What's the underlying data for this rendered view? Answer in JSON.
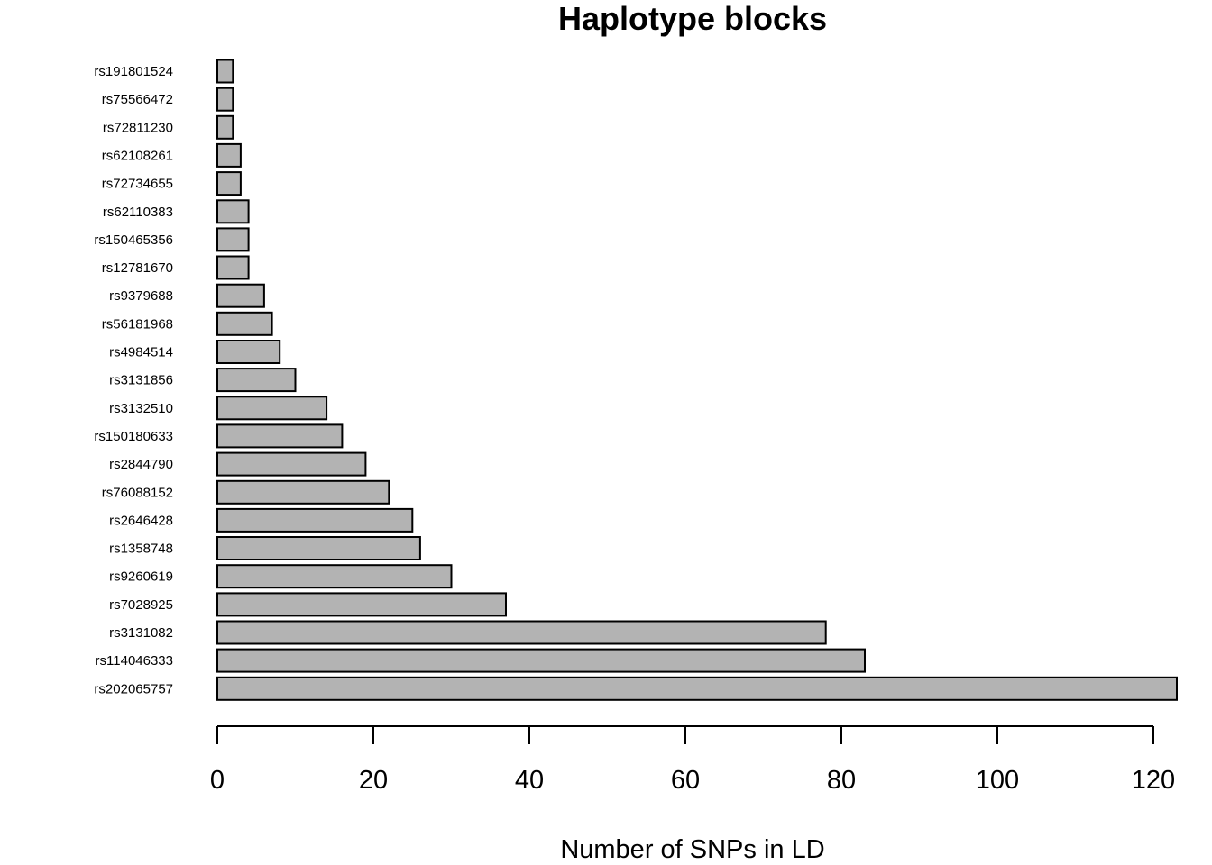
{
  "chart_data": {
    "type": "bar",
    "orientation": "horizontal",
    "title": "Haplotype blocks",
    "xlabel": "Number of SNPs in LD",
    "ylabel": "",
    "categories": [
      "rs191801524",
      "rs75566472",
      "rs72811230",
      "rs62108261",
      "rs72734655",
      "rs62110383",
      "rs150465356",
      "rs12781670",
      "rs9379688",
      "rs56181968",
      "rs4984514",
      "rs3131856",
      "rs3132510",
      "rs150180633",
      "rs2844790",
      "rs76088152",
      "rs2646428",
      "rs1358748",
      "rs9260619",
      "rs7028925",
      "rs3131082",
      "rs114046333",
      "rs202065757"
    ],
    "values": [
      2,
      2,
      2,
      3,
      3,
      4,
      4,
      4,
      6,
      7,
      8,
      10,
      14,
      16,
      19,
      22,
      25,
      26,
      30,
      37,
      78,
      83,
      123
    ],
    "xlim": [
      0,
      120
    ],
    "xticks": [
      0,
      20,
      40,
      60,
      80,
      100,
      120
    ],
    "bar_color": "#b3b3b3",
    "grid": false,
    "legend": "none"
  }
}
